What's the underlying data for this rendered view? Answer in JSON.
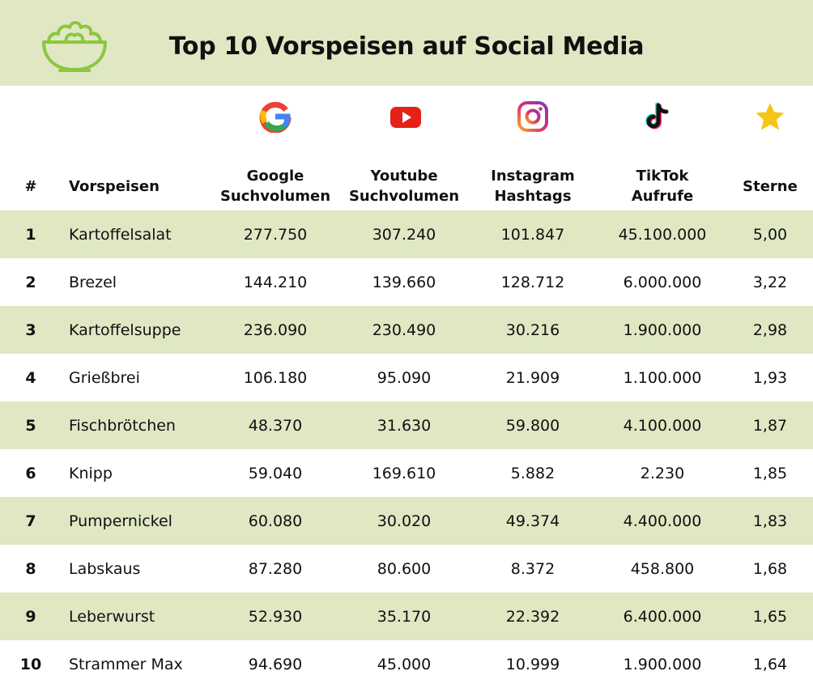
{
  "title": "Top 10 Vorspeisen auf Social Media",
  "colors": {
    "band": "#dfe8c3",
    "accent": "#8dc63f",
    "star": "#f6c414"
  },
  "icons": [
    "salad-bowl-icon",
    "google-icon",
    "youtube-icon",
    "instagram-icon",
    "tiktok-icon",
    "star-icon"
  ],
  "columns": {
    "rank": "#",
    "dish": "Vorspeisen",
    "google_l1": "Google",
    "google_l2": "Suchvolumen",
    "youtube_l1": "Youtube",
    "youtube_l2": "Suchvolumen",
    "instagram_l1": "Instagram",
    "instagram_l2": "Hashtags",
    "tiktok_l1": "TikTok",
    "tiktok_l2": "Aufrufe",
    "stars": "Sterne"
  },
  "chart_data": {
    "type": "table",
    "title": "Top 10 Vorspeisen auf Social Media",
    "columns": [
      "#",
      "Vorspeisen",
      "Google Suchvolumen",
      "Youtube Suchvolumen",
      "Instagram Hashtags",
      "TikTok Aufrufe",
      "Sterne"
    ],
    "rows": [
      {
        "rank": "1",
        "dish": "Kartoffelsalat",
        "google": "277.750",
        "youtube": "307.240",
        "instagram": "101.847",
        "tiktok": "45.100.000",
        "stars": "5,00"
      },
      {
        "rank": "2",
        "dish": "Brezel",
        "google": "144.210",
        "youtube": "139.660",
        "instagram": "128.712",
        "tiktok": "6.000.000",
        "stars": "3,22"
      },
      {
        "rank": "3",
        "dish": "Kartoffelsuppe",
        "google": "236.090",
        "youtube": "230.490",
        "instagram": "30.216",
        "tiktok": "1.900.000",
        "stars": "2,98"
      },
      {
        "rank": "4",
        "dish": "Grießbrei",
        "google": "106.180",
        "youtube": "95.090",
        "instagram": "21.909",
        "tiktok": "1.100.000",
        "stars": "1,93"
      },
      {
        "rank": "5",
        "dish": "Fischbrötchen",
        "google": "48.370",
        "youtube": "31.630",
        "instagram": "59.800",
        "tiktok": "4.100.000",
        "stars": "1,87"
      },
      {
        "rank": "6",
        "dish": "Knipp",
        "google": "59.040",
        "youtube": "169.610",
        "instagram": "5.882",
        "tiktok": "2.230",
        "stars": "1,85"
      },
      {
        "rank": "7",
        "dish": "Pumpernickel",
        "google": "60.080",
        "youtube": "30.020",
        "instagram": "49.374",
        "tiktok": "4.400.000",
        "stars": "1,83"
      },
      {
        "rank": "8",
        "dish": "Labskaus",
        "google": "87.280",
        "youtube": "80.600",
        "instagram": "8.372",
        "tiktok": "458.800",
        "stars": "1,68"
      },
      {
        "rank": "9",
        "dish": "Leberwurst",
        "google": "52.930",
        "youtube": "35.170",
        "instagram": "22.392",
        "tiktok": "6.400.000",
        "stars": "1,65"
      },
      {
        "rank": "10",
        "dish": "Strammer Max",
        "google": "94.690",
        "youtube": "45.000",
        "instagram": "10.999",
        "tiktok": "1.900.000",
        "stars": "1,64"
      }
    ]
  }
}
